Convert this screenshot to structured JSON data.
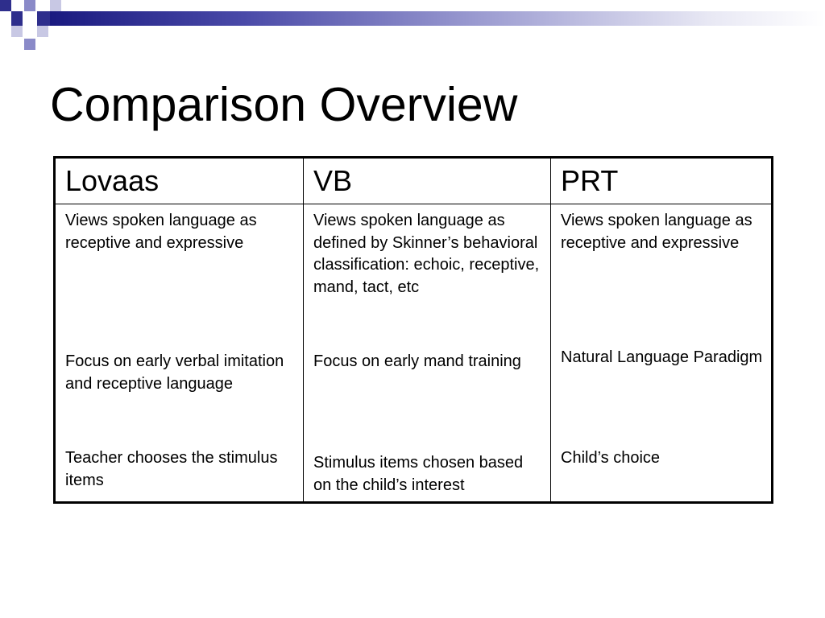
{
  "slide": {
    "title": "Comparison Overview"
  },
  "theme": {
    "accent_dark": "#2e2e8c",
    "accent_mid": "#8a8ac8",
    "accent_light": "#c8c8e4"
  },
  "table": {
    "headers": [
      "Lovaas",
      "VB",
      "PRT"
    ],
    "columns": [
      {
        "paragraphs": [
          "Views spoken language as receptive and expressive",
          "Focus on early verbal imitation and receptive language",
          "Teacher chooses the stimulus items"
        ]
      },
      {
        "paragraphs": [
          "Views spoken language as defined by Skinner’s behavioral classification: echoic, receptive, mand, tact, etc",
          "Focus on early mand training",
          "Stimulus items chosen based on the child’s interest"
        ]
      },
      {
        "paragraphs": [
          "Views spoken language as receptive and expressive",
          "Natural Language Paradigm",
          "Child’s choice"
        ]
      }
    ]
  }
}
